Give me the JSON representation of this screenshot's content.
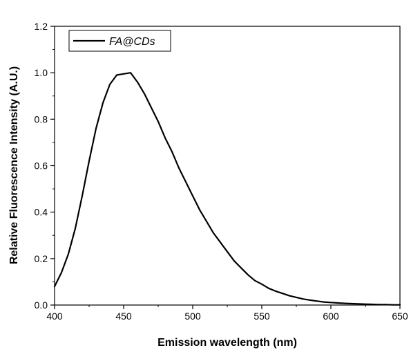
{
  "chart_data": {
    "type": "line",
    "title": "",
    "xlabel": "Emission wavelength (nm)",
    "ylabel": "Relative Fluorescence Intensity (A.U.)",
    "xlim": [
      400,
      650
    ],
    "ylim": [
      0.0,
      1.2
    ],
    "xticks": [
      400,
      450,
      500,
      550,
      600,
      650
    ],
    "xtick_labels": [
      "400",
      "450",
      "500",
      "550",
      "600",
      "650"
    ],
    "yticks": [
      0.0,
      0.2,
      0.4,
      0.6,
      0.8,
      1.0,
      1.2
    ],
    "ytick_labels": [
      "0.0",
      "0.2",
      "0.4",
      "0.6",
      "0.8",
      "1.0",
      "1.2"
    ],
    "grid": false,
    "legend": {
      "position": "top-left",
      "entries": [
        "FA@CDs"
      ]
    },
    "series": [
      {
        "name": "FA@CDs",
        "color": "#000000",
        "x": [
          400,
          405,
          410,
          415,
          420,
          425,
          430,
          435,
          440,
          445,
          450,
          455,
          460,
          465,
          470,
          475,
          480,
          485,
          490,
          495,
          500,
          505,
          510,
          515,
          520,
          525,
          530,
          535,
          540,
          545,
          550,
          555,
          560,
          565,
          570,
          575,
          580,
          585,
          590,
          595,
          600,
          605,
          610,
          615,
          620,
          625,
          630,
          635,
          640,
          645,
          650
        ],
        "y": [
          0.08,
          0.14,
          0.22,
          0.33,
          0.47,
          0.62,
          0.76,
          0.87,
          0.95,
          0.99,
          0.995,
          1.0,
          0.96,
          0.91,
          0.85,
          0.79,
          0.72,
          0.66,
          0.59,
          0.53,
          0.47,
          0.41,
          0.36,
          0.31,
          0.27,
          0.23,
          0.19,
          0.16,
          0.13,
          0.105,
          0.09,
          0.072,
          0.06,
          0.05,
          0.04,
          0.033,
          0.026,
          0.021,
          0.017,
          0.013,
          0.011,
          0.009,
          0.007,
          0.006,
          0.005,
          0.004,
          0.003,
          0.002,
          0.002,
          0.001,
          0.001
        ]
      }
    ]
  }
}
